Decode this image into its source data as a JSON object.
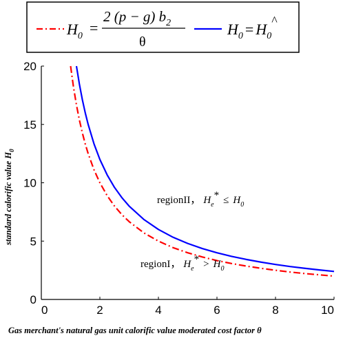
{
  "chart_data": {
    "type": "line",
    "xlabel": "Gas merchant's natural gas unit calorific value moderated cost factor θ",
    "ylabel": "standard calorific value H",
    "ylabel_subscript": "0",
    "xlim": [
      0,
      10
    ],
    "ylim": [
      0,
      20
    ],
    "x_ticks": [
      "0",
      "2",
      "4",
      "6",
      "8",
      "10"
    ],
    "y_ticks": [
      "0",
      "5",
      "10",
      "15",
      "20"
    ],
    "grid": false,
    "legend_position": "top",
    "legend": {
      "formula_lhs": "H",
      "formula_lhs_sub": "0",
      "formula_eq": "=",
      "formula_numerator": "2 (p − g) b",
      "formula_numerator_sub": "2",
      "formula_denominator": "θ",
      "curve_label_lhs": "H",
      "curve_label_lhs_sub": "0",
      "curve_label_eq": "=",
      "curve_label_rhs": "H",
      "curve_label_rhs_sub": "0",
      "curve_label_sup": "^"
    },
    "annotations": {
      "region2_label": "regionII，",
      "region2_sym": "H",
      "region2_sub": "e",
      "region2_sup": "*",
      "region2_rel": "≤",
      "region2_rhs": "H",
      "region2_rhs_sub": "0",
      "region1_label": "regionI，",
      "region1_sym": "H",
      "region1_sub": "e",
      "region1_sup": "*",
      "region1_rel": ">",
      "region1_rhs": "H",
      "region1_rhs_sub": "0"
    },
    "series": [
      {
        "key": "threshold",
        "color": "#ff0000",
        "style": "dash-dot",
        "x": [
          1.0,
          1.1,
          1.2,
          1.3,
          1.4,
          1.5,
          1.6,
          1.8,
          2.0,
          2.25,
          2.5,
          2.75,
          3.0,
          3.5,
          4.0,
          4.5,
          5.0,
          5.5,
          6.0,
          6.5,
          7.0,
          7.5,
          8.0,
          8.5,
          9.0,
          9.5,
          10.0
        ],
        "y": [
          20.0,
          18.18,
          16.67,
          15.38,
          14.29,
          13.33,
          12.5,
          11.11,
          10.0,
          8.89,
          8.0,
          7.27,
          6.67,
          5.71,
          5.0,
          4.44,
          4.0,
          3.64,
          3.33,
          3.08,
          2.86,
          2.67,
          2.5,
          2.35,
          2.22,
          2.11,
          2.0
        ]
      },
      {
        "key": "curve",
        "color": "#0000ff",
        "style": "solid",
        "x": [
          1.2,
          1.3,
          1.4,
          1.5,
          1.6,
          1.8,
          2.0,
          2.25,
          2.5,
          2.75,
          3.0,
          3.5,
          4.0,
          4.5,
          5.0,
          5.5,
          6.0,
          6.5,
          7.0,
          7.5,
          8.0,
          8.5,
          9.0,
          9.5,
          10.0
        ],
        "y": [
          20.0,
          18.46,
          17.14,
          16.0,
          15.0,
          13.33,
          12.0,
          10.67,
          9.6,
          8.73,
          8.0,
          6.86,
          6.0,
          5.33,
          4.8,
          4.36,
          4.0,
          3.69,
          3.43,
          3.2,
          3.0,
          2.82,
          2.67,
          2.53,
          2.4
        ]
      }
    ]
  }
}
